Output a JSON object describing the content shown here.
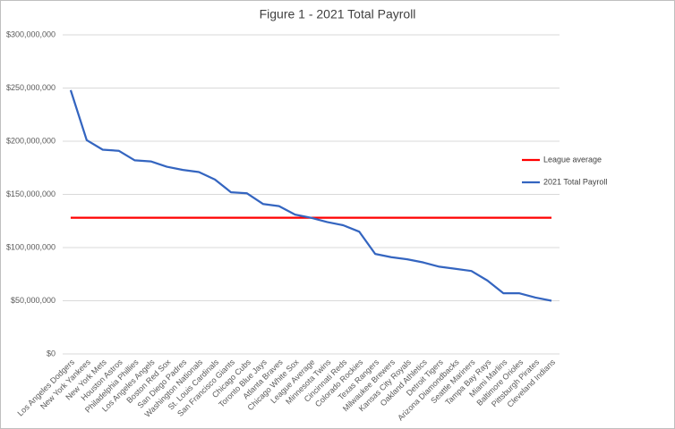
{
  "chart_data": {
    "type": "line",
    "title": "Figure 1 - 2021 Total Payroll",
    "categories": [
      "Los Angeles Dodgers",
      "New York Yankees",
      "New York Mets",
      "Houston Astros",
      "Philadelphia Phillies",
      "Los Angeles Angels",
      "Boston Red Sox",
      "San Diego Padres",
      "Washington Nationals",
      "St. Louis Cardinals",
      "San Francisco Giants",
      "Chicago Cubs",
      "Toronto Blue Jays",
      "Atlanta Braves",
      "Chicago White Sox",
      "League Average",
      "Minnesota Twins",
      "Cincinnati Reds",
      "Colorado Rockies",
      "Texas Rangers",
      "Milwaukee Brewers",
      "Kansas City Royals",
      "Oakland Athletics",
      "Detroit Tigers",
      "Arizona Diamondbacks",
      "Seattle Mariners",
      "Tampa Bay Rays",
      "Miami Marlins",
      "Baltimore Orioles",
      "Pittsburgh Pirates",
      "Cleveland Indians"
    ],
    "series": [
      {
        "name": "League average",
        "color": "#ff0000",
        "values": [
          128000000,
          128000000,
          128000000,
          128000000,
          128000000,
          128000000,
          128000000,
          128000000,
          128000000,
          128000000,
          128000000,
          128000000,
          128000000,
          128000000,
          128000000,
          128000000,
          128000000,
          128000000,
          128000000,
          128000000,
          128000000,
          128000000,
          128000000,
          128000000,
          128000000,
          128000000,
          128000000,
          128000000,
          128000000,
          128000000,
          128000000
        ]
      },
      {
        "name": "2021 Total Payroll",
        "color": "#3465c0",
        "values": [
          248000000,
          201000000,
          192000000,
          191000000,
          182000000,
          181000000,
          176000000,
          173000000,
          171000000,
          164000000,
          152000000,
          151000000,
          141000000,
          139000000,
          131000000,
          128000000,
          124000000,
          121000000,
          115000000,
          94000000,
          91000000,
          89000000,
          86000000,
          82000000,
          80000000,
          78000000,
          69000000,
          57000000,
          57000000,
          53000000,
          50000000
        ]
      }
    ],
    "ylim": [
      0,
      300000000
    ],
    "yticks": [
      {
        "value": 0,
        "label": "$0"
      },
      {
        "value": 50000000,
        "label": "$50,000,000"
      },
      {
        "value": 100000000,
        "label": "$100,000,000"
      },
      {
        "value": 150000000,
        "label": "$150,000,000"
      },
      {
        "value": 200000000,
        "label": "$200,000,000"
      },
      {
        "value": 250000000,
        "label": "$250,000,000"
      },
      {
        "value": 300000000,
        "label": "$300,000,000"
      }
    ],
    "grid": true,
    "legend": "right"
  }
}
